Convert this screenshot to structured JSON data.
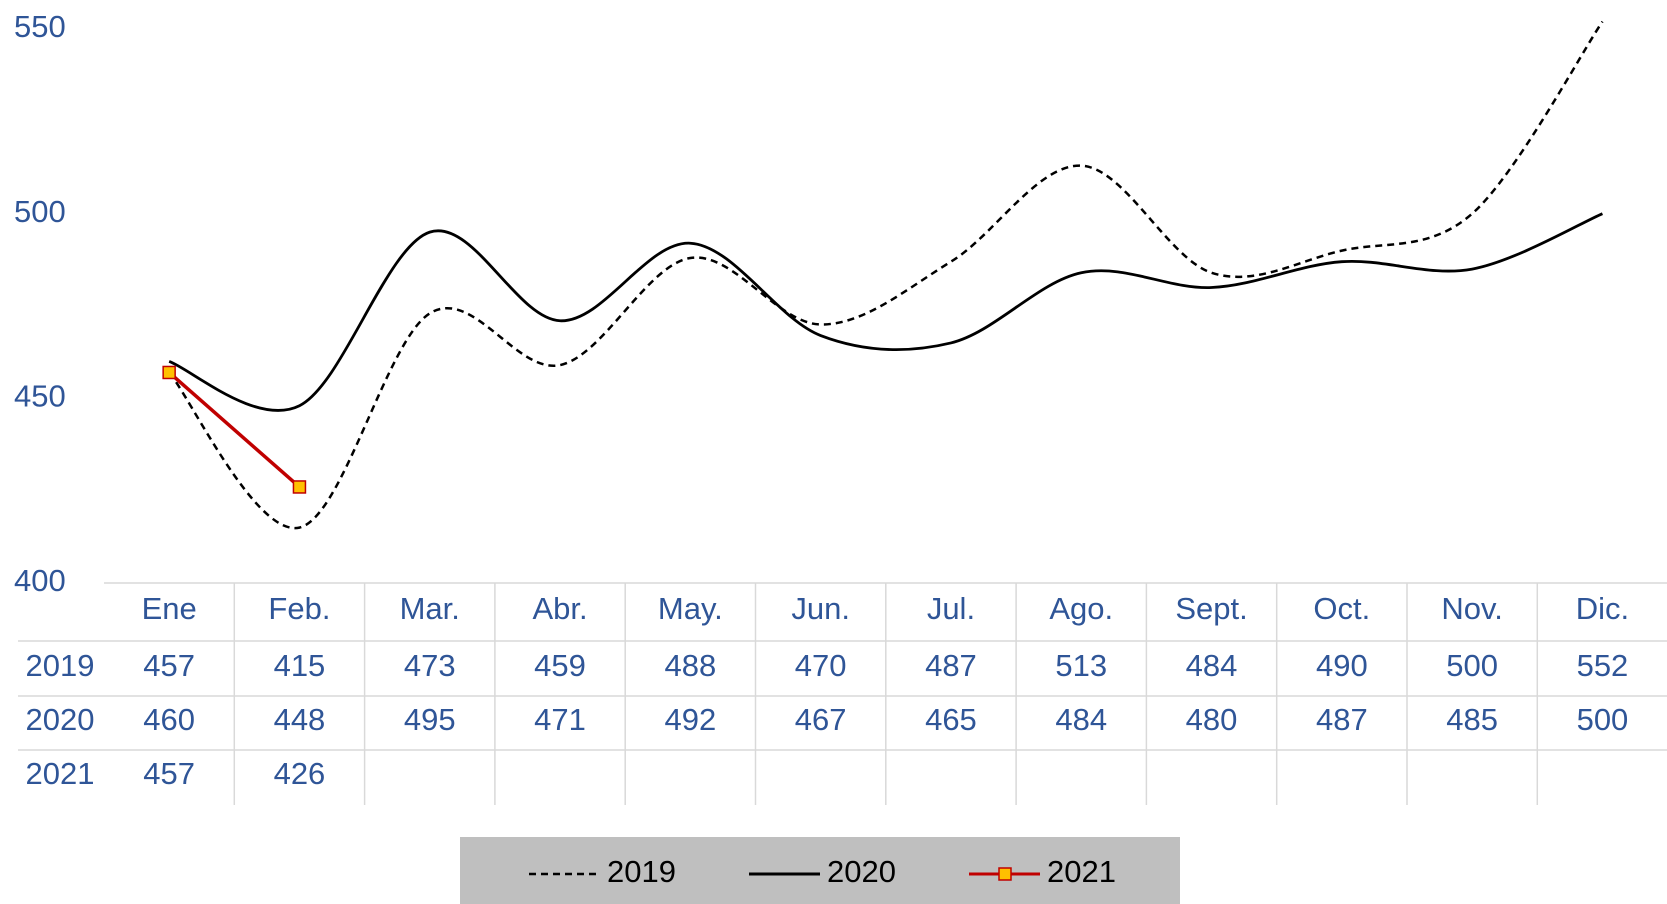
{
  "chart_data": {
    "type": "line",
    "categories": [
      "Ene",
      "Feb.",
      "Mar.",
      "Abr.",
      "May.",
      "Jun.",
      "Jul.",
      "Ago.",
      "Sept.",
      "Oct.",
      "Nov.",
      "Dic."
    ],
    "series": [
      {
        "name": "2019",
        "color": "#000000",
        "dash": true,
        "smooth": true,
        "values": [
          457,
          415,
          473,
          459,
          488,
          470,
          487,
          513,
          484,
          490,
          500,
          552
        ]
      },
      {
        "name": "2020",
        "color": "#000000",
        "dash": false,
        "smooth": true,
        "values": [
          460,
          448,
          495,
          471,
          492,
          467,
          465,
          484,
          480,
          487,
          485,
          500
        ]
      },
      {
        "name": "2021",
        "color": "#c00000",
        "dash": false,
        "smooth": false,
        "marker": "square",
        "marker_color": "#ffc000",
        "values": [
          457,
          426,
          null,
          null,
          null,
          null,
          null,
          null,
          null,
          null,
          null,
          null
        ]
      }
    ],
    "ylim": [
      400,
      550
    ],
    "yticks": [
      400,
      450,
      500,
      550
    ],
    "grid": false,
    "legend": "bottom"
  }
}
